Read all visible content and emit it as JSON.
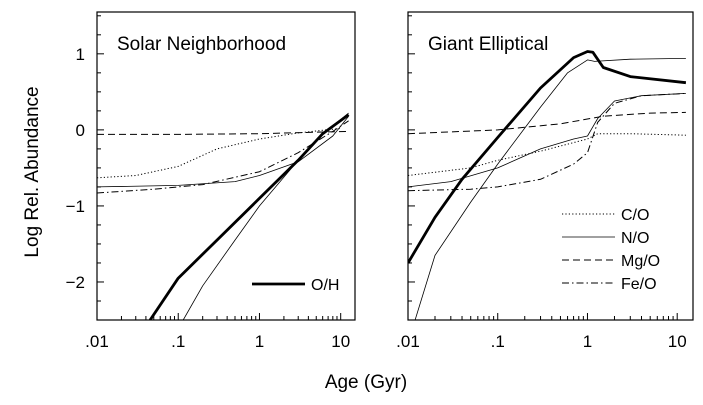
{
  "chart_data": {
    "type": "line",
    "ylabel": "Log Rel. Abundance",
    "xlabel": "Age (Gyr)",
    "xscale": "log",
    "xlim": [
      0.01,
      15
    ],
    "ylim": [
      -2.5,
      1.55
    ],
    "xticks": [
      {
        "value": 0.01,
        "label": ".01"
      },
      {
        "value": 0.1,
        "label": ".1"
      },
      {
        "value": 1,
        "label": "1"
      },
      {
        "value": 10,
        "label": "10"
      }
    ],
    "yticks": [
      {
        "value": 1,
        "label": "1"
      },
      {
        "value": 0,
        "label": "0"
      },
      {
        "value": -1,
        "label": "−1"
      },
      {
        "value": -2,
        "label": "−2"
      }
    ],
    "panels": [
      {
        "title": "Solar Neighborhood",
        "legend": [
          {
            "label": "O/H",
            "style": "thick"
          }
        ],
        "series": [
          {
            "style": "thick",
            "points": [
              [
                0.045,
                -2.5
              ],
              [
                0.1,
                -1.95
              ],
              [
                0.3,
                -1.45
              ],
              [
                1,
                -0.9
              ],
              [
                3,
                -0.4
              ],
              [
                6,
                -0.05
              ],
              [
                12.5,
                0.2
              ]
            ]
          },
          {
            "style": "thin",
            "points": [
              [
                0.115,
                -2.5
              ],
              [
                0.2,
                -2.05
              ],
              [
                0.5,
                -1.45
              ],
              [
                1,
                -1.0
              ],
              [
                3,
                -0.4
              ],
              [
                6,
                -0.05
              ],
              [
                12.5,
                0.22
              ]
            ]
          },
          {
            "style": "dotted",
            "points": [
              [
                0.01,
                -0.63
              ],
              [
                0.03,
                -0.6
              ],
              [
                0.1,
                -0.48
              ],
              [
                0.3,
                -0.25
              ],
              [
                1,
                -0.12
              ],
              [
                3,
                -0.04
              ],
              [
                10,
                0.02
              ]
            ]
          },
          {
            "style": "dashed",
            "points": [
              [
                0.01,
                -0.06
              ],
              [
                0.1,
                -0.06
              ],
              [
                1,
                -0.05
              ],
              [
                5,
                -0.03
              ],
              [
                12.5,
                -0.02
              ]
            ]
          },
          {
            "style": "solid-thin",
            "points": [
              [
                0.01,
                -0.75
              ],
              [
                0.1,
                -0.73
              ],
              [
                0.5,
                -0.68
              ],
              [
                1,
                -0.6
              ],
              [
                3,
                -0.42
              ],
              [
                8,
                -0.08
              ],
              [
                12.5,
                0.18
              ]
            ]
          },
          {
            "style": "dashdot",
            "points": [
              [
                0.01,
                -0.83
              ],
              [
                0.05,
                -0.78
              ],
              [
                0.2,
                -0.72
              ],
              [
                1,
                -0.55
              ],
              [
                3,
                -0.3
              ],
              [
                8,
                -0.02
              ],
              [
                12.5,
                0.12
              ]
            ]
          }
        ]
      },
      {
        "title": "Giant Elliptical",
        "legend": [
          {
            "label": "C/O",
            "style": "dotted"
          },
          {
            "label": "N/O",
            "style": "solid-thin"
          },
          {
            "label": "Mg/O",
            "style": "dashed"
          },
          {
            "label": "Fe/O",
            "style": "dashdot"
          }
        ],
        "series": [
          {
            "style": "thick",
            "points": [
              [
                0.01,
                -1.75
              ],
              [
                0.02,
                -1.15
              ],
              [
                0.04,
                -0.65
              ],
              [
                0.1,
                -0.1
              ],
              [
                0.3,
                0.55
              ],
              [
                0.7,
                0.95
              ],
              [
                1,
                1.03
              ],
              [
                1.15,
                1.02
              ],
              [
                1.5,
                0.82
              ],
              [
                3,
                0.7
              ],
              [
                12.5,
                0.62
              ]
            ]
          },
          {
            "style": "thin",
            "points": [
              [
                0.012,
                -2.5
              ],
              [
                0.02,
                -1.65
              ],
              [
                0.05,
                -0.95
              ],
              [
                0.1,
                -0.45
              ],
              [
                0.3,
                0.3
              ],
              [
                0.6,
                0.75
              ],
              [
                1,
                0.92
              ],
              [
                1.2,
                0.9
              ],
              [
                3,
                0.93
              ],
              [
                12.5,
                0.94
              ]
            ]
          },
          {
            "style": "dotted",
            "points": [
              [
                0.01,
                -0.6
              ],
              [
                0.05,
                -0.5
              ],
              [
                0.1,
                -0.4
              ],
              [
                0.3,
                -0.28
              ],
              [
                1,
                -0.12
              ],
              [
                1.3,
                -0.05
              ],
              [
                3,
                -0.05
              ],
              [
                12.5,
                -0.07
              ]
            ]
          },
          {
            "style": "dashed",
            "points": [
              [
                0.01,
                -0.05
              ],
              [
                0.1,
                0.0
              ],
              [
                0.5,
                0.08
              ],
              [
                1.5,
                0.18
              ],
              [
                5,
                0.22
              ],
              [
                12.5,
                0.23
              ]
            ]
          },
          {
            "style": "solid-thin",
            "points": [
              [
                0.01,
                -0.75
              ],
              [
                0.03,
                -0.68
              ],
              [
                0.1,
                -0.5
              ],
              [
                0.3,
                -0.25
              ],
              [
                0.7,
                -0.12
              ],
              [
                1,
                -0.08
              ],
              [
                1.3,
                0.15
              ],
              [
                2,
                0.38
              ],
              [
                4,
                0.45
              ],
              [
                12.5,
                0.48
              ]
            ]
          },
          {
            "style": "dashdot",
            "points": [
              [
                0.01,
                -0.8
              ],
              [
                0.05,
                -0.78
              ],
              [
                0.1,
                -0.75
              ],
              [
                0.3,
                -0.65
              ],
              [
                0.7,
                -0.45
              ],
              [
                1,
                -0.3
              ],
              [
                1.3,
                0.1
              ],
              [
                2,
                0.35
              ],
              [
                4,
                0.45
              ],
              [
                12.5,
                0.48
              ]
            ]
          }
        ]
      }
    ]
  }
}
